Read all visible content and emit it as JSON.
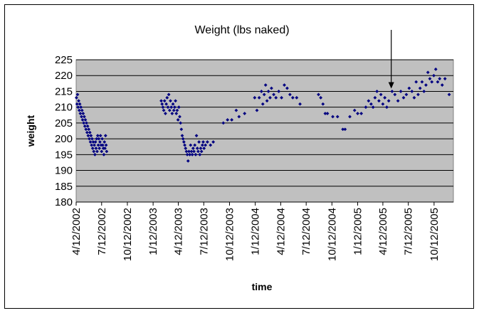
{
  "chart_data": {
    "type": "scatter",
    "title": "Weight (lbs naked)",
    "xlabel": "time",
    "ylabel": "weight",
    "ylim": [
      180,
      225
    ],
    "yticks": [
      180,
      185,
      190,
      195,
      200,
      205,
      210,
      215,
      220,
      225
    ],
    "xlim": [
      "2002-04-12",
      "2005-12-20"
    ],
    "xtick_labels": [
      "4/12/2002",
      "7/12/2002",
      "10/12/2002",
      "1/12/2003",
      "4/12/2003",
      "7/12/2003",
      "10/12/2003",
      "1/12/2004",
      "4/12/2004",
      "7/12/2004",
      "10/12/2004",
      "1/12/2005",
      "4/12/2005",
      "7/12/2005",
      "10/12/2005"
    ],
    "xtick_dates": [
      "2002-04-12",
      "2002-07-12",
      "2002-10-12",
      "2003-01-12",
      "2003-04-12",
      "2003-07-12",
      "2003-10-12",
      "2004-01-12",
      "2004-04-12",
      "2004-07-12",
      "2004-10-12",
      "2005-01-12",
      "2005-04-12",
      "2005-07-12",
      "2005-10-12"
    ],
    "grid": "horizontal",
    "plot_background": "#c0c0c0",
    "marker_color": "#000080",
    "annotation": {
      "type": "arrow",
      "date": "2005-05-12",
      "points_to_weight": 215
    },
    "points": [
      {
        "x": "2002-04-13",
        "y": 213
      },
      {
        "x": "2002-04-15",
        "y": 211
      },
      {
        "x": "2002-04-17",
        "y": 214
      },
      {
        "x": "2002-04-19",
        "y": 210
      },
      {
        "x": "2002-04-21",
        "y": 212
      },
      {
        "x": "2002-04-23",
        "y": 209
      },
      {
        "x": "2002-04-25",
        "y": 211
      },
      {
        "x": "2002-04-27",
        "y": 208
      },
      {
        "x": "2002-04-29",
        "y": 210
      },
      {
        "x": "2002-05-01",
        "y": 207
      },
      {
        "x": "2002-05-03",
        "y": 209
      },
      {
        "x": "2002-05-05",
        "y": 206
      },
      {
        "x": "2002-05-07",
        "y": 208
      },
      {
        "x": "2002-05-09",
        "y": 205
      },
      {
        "x": "2002-05-11",
        "y": 207
      },
      {
        "x": "2002-05-13",
        "y": 204
      },
      {
        "x": "2002-05-15",
        "y": 206
      },
      {
        "x": "2002-05-17",
        "y": 203
      },
      {
        "x": "2002-05-19",
        "y": 205
      },
      {
        "x": "2002-05-21",
        "y": 202
      },
      {
        "x": "2002-05-23",
        "y": 204
      },
      {
        "x": "2002-05-25",
        "y": 201
      },
      {
        "x": "2002-05-27",
        "y": 203
      },
      {
        "x": "2002-05-29",
        "y": 200
      },
      {
        "x": "2002-05-31",
        "y": 202
      },
      {
        "x": "2002-06-02",
        "y": 199
      },
      {
        "x": "2002-06-04",
        "y": 201
      },
      {
        "x": "2002-06-06",
        "y": 198
      },
      {
        "x": "2002-06-08",
        "y": 200
      },
      {
        "x": "2002-06-10",
        "y": 197
      },
      {
        "x": "2002-06-12",
        "y": 199
      },
      {
        "x": "2002-06-14",
        "y": 196
      },
      {
        "x": "2002-06-16",
        "y": 198
      },
      {
        "x": "2002-06-18",
        "y": 195
      },
      {
        "x": "2002-06-20",
        "y": 199
      },
      {
        "x": "2002-06-22",
        "y": 197
      },
      {
        "x": "2002-06-24",
        "y": 200
      },
      {
        "x": "2002-06-26",
        "y": 196
      },
      {
        "x": "2002-06-28",
        "y": 201
      },
      {
        "x": "2002-06-30",
        "y": 198
      },
      {
        "x": "2002-07-02",
        "y": 200
      },
      {
        "x": "2002-07-04",
        "y": 197
      },
      {
        "x": "2002-07-06",
        "y": 199
      },
      {
        "x": "2002-07-08",
        "y": 201
      },
      {
        "x": "2002-07-10",
        "y": 198
      },
      {
        "x": "2002-07-12",
        "y": 196
      },
      {
        "x": "2002-07-14",
        "y": 200
      },
      {
        "x": "2002-07-16",
        "y": 198
      },
      {
        "x": "2002-07-18",
        "y": 197
      },
      {
        "x": "2002-07-20",
        "y": 195
      },
      {
        "x": "2002-07-22",
        "y": 199
      },
      {
        "x": "2002-07-24",
        "y": 197
      },
      {
        "x": "2002-07-26",
        "y": 201
      },
      {
        "x": "2002-07-28",
        "y": 198
      },
      {
        "x": "2002-07-30",
        "y": 196
      },
      {
        "x": "2003-02-10",
        "y": 212
      },
      {
        "x": "2003-02-13",
        "y": 211
      },
      {
        "x": "2003-02-16",
        "y": 210
      },
      {
        "x": "2003-02-19",
        "y": 209
      },
      {
        "x": "2003-02-22",
        "y": 212
      },
      {
        "x": "2003-02-25",
        "y": 208
      },
      {
        "x": "2003-02-28",
        "y": 211
      },
      {
        "x": "2003-03-03",
        "y": 213
      },
      {
        "x": "2003-03-06",
        "y": 210
      },
      {
        "x": "2003-03-09",
        "y": 214
      },
      {
        "x": "2003-03-12",
        "y": 209
      },
      {
        "x": "2003-03-15",
        "y": 212
      },
      {
        "x": "2003-03-18",
        "y": 210
      },
      {
        "x": "2003-03-21",
        "y": 208
      },
      {
        "x": "2003-03-24",
        "y": 211
      },
      {
        "x": "2003-03-27",
        "y": 209
      },
      {
        "x": "2003-03-30",
        "y": 210
      },
      {
        "x": "2003-04-02",
        "y": 212
      },
      {
        "x": "2003-04-05",
        "y": 208
      },
      {
        "x": "2003-04-08",
        "y": 209
      },
      {
        "x": "2003-04-11",
        "y": 206
      },
      {
        "x": "2003-04-14",
        "y": 210
      },
      {
        "x": "2003-04-17",
        "y": 207
      },
      {
        "x": "2003-04-20",
        "y": 205
      },
      {
        "x": "2003-04-23",
        "y": 203
      },
      {
        "x": "2003-04-26",
        "y": 201
      },
      {
        "x": "2003-04-29",
        "y": 200
      },
      {
        "x": "2003-05-02",
        "y": 199
      },
      {
        "x": "2003-05-05",
        "y": 198
      },
      {
        "x": "2003-05-08",
        "y": 197
      },
      {
        "x": "2003-05-11",
        "y": 196
      },
      {
        "x": "2003-05-14",
        "y": 195
      },
      {
        "x": "2003-05-17",
        "y": 193
      },
      {
        "x": "2003-05-20",
        "y": 196
      },
      {
        "x": "2003-05-23",
        "y": 195
      },
      {
        "x": "2003-05-26",
        "y": 198
      },
      {
        "x": "2003-05-29",
        "y": 196
      },
      {
        "x": "2003-06-01",
        "y": 195
      },
      {
        "x": "2003-06-04",
        "y": 197
      },
      {
        "x": "2003-06-07",
        "y": 196
      },
      {
        "x": "2003-06-10",
        "y": 198
      },
      {
        "x": "2003-06-13",
        "y": 195
      },
      {
        "x": "2003-06-16",
        "y": 201
      },
      {
        "x": "2003-06-19",
        "y": 197
      },
      {
        "x": "2003-06-22",
        "y": 196
      },
      {
        "x": "2003-06-25",
        "y": 199
      },
      {
        "x": "2003-06-28",
        "y": 195
      },
      {
        "x": "2003-07-01",
        "y": 197
      },
      {
        "x": "2003-07-04",
        "y": 196
      },
      {
        "x": "2003-07-07",
        "y": 198
      },
      {
        "x": "2003-07-10",
        "y": 199
      },
      {
        "x": "2003-07-13",
        "y": 197
      },
      {
        "x": "2003-07-18",
        "y": 198
      },
      {
        "x": "2003-07-25",
        "y": 199
      },
      {
        "x": "2003-08-05",
        "y": 198
      },
      {
        "x": "2003-08-15",
        "y": 199
      },
      {
        "x": "2003-09-20",
        "y": 205
      },
      {
        "x": "2003-10-05",
        "y": 206
      },
      {
        "x": "2003-10-20",
        "y": 206
      },
      {
        "x": "2003-11-05",
        "y": 209
      },
      {
        "x": "2003-11-15",
        "y": 207
      },
      {
        "x": "2003-12-05",
        "y": 208
      },
      {
        "x": "2004-01-10",
        "y": 213
      },
      {
        "x": "2004-01-18",
        "y": 209
      },
      {
        "x": "2004-01-26",
        "y": 213
      },
      {
        "x": "2004-02-03",
        "y": 215
      },
      {
        "x": "2004-02-08",
        "y": 211
      },
      {
        "x": "2004-02-13",
        "y": 214
      },
      {
        "x": "2004-02-18",
        "y": 217
      },
      {
        "x": "2004-02-23",
        "y": 212
      },
      {
        "x": "2004-02-28",
        "y": 215
      },
      {
        "x": "2004-03-05",
        "y": 213
      },
      {
        "x": "2004-03-10",
        "y": 216
      },
      {
        "x": "2004-03-18",
        "y": 214
      },
      {
        "x": "2004-03-26",
        "y": 213
      },
      {
        "x": "2004-04-05",
        "y": 215
      },
      {
        "x": "2004-04-15",
        "y": 213
      },
      {
        "x": "2004-04-25",
        "y": 217
      },
      {
        "x": "2004-05-05",
        "y": 216
      },
      {
        "x": "2004-05-15",
        "y": 214
      },
      {
        "x": "2004-05-25",
        "y": 213
      },
      {
        "x": "2004-06-08",
        "y": 213
      },
      {
        "x": "2004-06-20",
        "y": 211
      },
      {
        "x": "2004-08-25",
        "y": 214
      },
      {
        "x": "2004-09-02",
        "y": 213
      },
      {
        "x": "2004-09-10",
        "y": 211
      },
      {
        "x": "2004-09-18",
        "y": 208
      },
      {
        "x": "2004-09-26",
        "y": 208
      },
      {
        "x": "2004-10-15",
        "y": 207
      },
      {
        "x": "2004-11-01",
        "y": 207
      },
      {
        "x": "2004-11-20",
        "y": 203
      },
      {
        "x": "2004-11-28",
        "y": 203
      },
      {
        "x": "2004-12-15",
        "y": 207
      },
      {
        "x": "2005-01-01",
        "y": 209
      },
      {
        "x": "2005-01-12",
        "y": 208
      },
      {
        "x": "2005-01-25",
        "y": 208
      },
      {
        "x": "2005-02-10",
        "y": 210
      },
      {
        "x": "2005-02-20",
        "y": 212
      },
      {
        "x": "2005-03-01",
        "y": 211
      },
      {
        "x": "2005-03-08",
        "y": 210
      },
      {
        "x": "2005-03-15",
        "y": 213
      },
      {
        "x": "2005-03-22",
        "y": 215
      },
      {
        "x": "2005-03-29",
        "y": 212
      },
      {
        "x": "2005-04-05",
        "y": 214
      },
      {
        "x": "2005-04-12",
        "y": 211
      },
      {
        "x": "2005-04-19",
        "y": 213
      },
      {
        "x": "2005-04-26",
        "y": 210
      },
      {
        "x": "2005-05-03",
        "y": 212
      },
      {
        "x": "2005-05-15",
        "y": 215
      },
      {
        "x": "2005-05-25",
        "y": 214
      },
      {
        "x": "2005-06-05",
        "y": 212
      },
      {
        "x": "2005-06-15",
        "y": 215
      },
      {
        "x": "2005-06-25",
        "y": 213
      },
      {
        "x": "2005-07-05",
        "y": 214
      },
      {
        "x": "2005-07-15",
        "y": 216
      },
      {
        "x": "2005-07-25",
        "y": 215
      },
      {
        "x": "2005-08-02",
        "y": 213
      },
      {
        "x": "2005-08-09",
        "y": 218
      },
      {
        "x": "2005-08-16",
        "y": 214
      },
      {
        "x": "2005-08-23",
        "y": 216
      },
      {
        "x": "2005-08-30",
        "y": 218
      },
      {
        "x": "2005-09-06",
        "y": 215
      },
      {
        "x": "2005-09-13",
        "y": 217
      },
      {
        "x": "2005-09-20",
        "y": 221
      },
      {
        "x": "2005-09-27",
        "y": 219
      },
      {
        "x": "2005-10-04",
        "y": 218
      },
      {
        "x": "2005-10-11",
        "y": 220
      },
      {
        "x": "2005-10-18",
        "y": 222
      },
      {
        "x": "2005-10-25",
        "y": 218
      },
      {
        "x": "2005-11-01",
        "y": 219
      },
      {
        "x": "2005-11-10",
        "y": 217
      },
      {
        "x": "2005-11-20",
        "y": 219
      },
      {
        "x": "2005-12-05",
        "y": 214
      }
    ]
  }
}
